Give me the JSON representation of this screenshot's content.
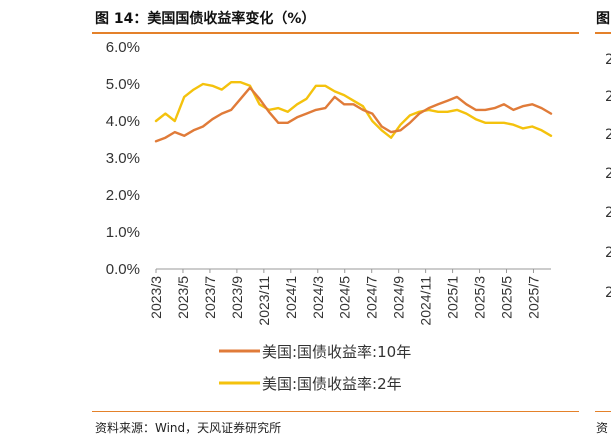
{
  "figure": {
    "title": "图 14：美国国债收益率变化（%）",
    "source": "资料来源：Wind，天风证券研究所",
    "right_panel_title": "图",
    "right_panel_source": "资",
    "right_panel_tick_labels": [
      "2",
      "2",
      "2",
      "2",
      "2",
      "2",
      "2"
    ]
  },
  "chart_data": {
    "type": "line",
    "title": "美国国债收益率变化（%）",
    "xlabel": "",
    "ylabel": "",
    "ylim": [
      0,
      6
    ],
    "yticks": [
      "0.0%",
      "1.0%",
      "2.0%",
      "3.0%",
      "4.0%",
      "5.0%",
      "6.0%"
    ],
    "x_start": "2023/3",
    "x_end": "2025/8",
    "xtick_labels": [
      "2023/3",
      "2023/5",
      "2023/7",
      "2023/9",
      "2023/11",
      "2024/1",
      "2024/3",
      "2024/5",
      "2024/7",
      "2024/9",
      "2024/11",
      "2025/1",
      "2025/3",
      "2025/5",
      "2025/7"
    ],
    "legend_position": "bottom",
    "series": [
      {
        "name": "美国:国债收益率:10年",
        "color": "#e07b39",
        "values": [
          3.45,
          3.55,
          3.7,
          3.6,
          3.75,
          3.85,
          4.05,
          4.2,
          4.3,
          4.6,
          4.9,
          4.6,
          4.25,
          3.95,
          3.95,
          4.1,
          4.2,
          4.3,
          4.35,
          4.65,
          4.45,
          4.45,
          4.3,
          4.2,
          3.85,
          3.7,
          3.75,
          3.95,
          4.2,
          4.35,
          4.45,
          4.55,
          4.65,
          4.45,
          4.3,
          4.3,
          4.35,
          4.45,
          4.3,
          4.4,
          4.45,
          4.35,
          4.2
        ]
      },
      {
        "name": "美国:国债收益率:2年",
        "color": "#f4c20d",
        "values": [
          4.0,
          4.2,
          4.0,
          4.65,
          4.85,
          5.0,
          4.95,
          4.85,
          5.05,
          5.05,
          4.95,
          4.45,
          4.3,
          4.35,
          4.25,
          4.45,
          4.6,
          4.95,
          4.95,
          4.8,
          4.7,
          4.55,
          4.4,
          4.0,
          3.75,
          3.55,
          3.9,
          4.15,
          4.25,
          4.3,
          4.25,
          4.25,
          4.3,
          4.2,
          4.05,
          3.95,
          3.95,
          3.95,
          3.9,
          3.8,
          3.85,
          3.75,
          3.6
        ]
      }
    ]
  }
}
